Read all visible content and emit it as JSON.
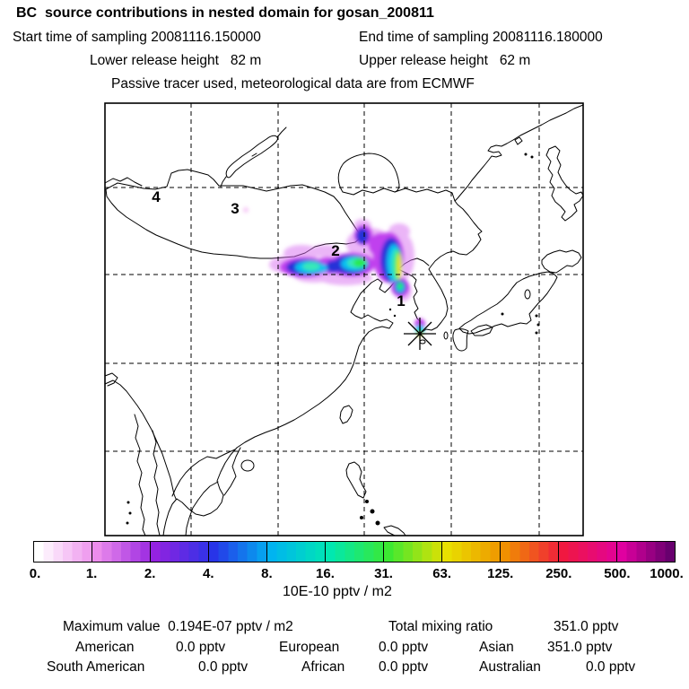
{
  "header": {
    "title": "BC  source contributions in nested domain for gosan_200811",
    "start_time": "Start time of sampling 20081116.150000",
    "end_time": "End time of sampling 20081116.180000",
    "lower_release": "Lower release height   82 m",
    "upper_release": "Upper release height   62 m",
    "tracer_info": "Passive tracer used, meteorological data are from ECMWF"
  },
  "map": {
    "region_labels": [
      {
        "label": "1"
      },
      {
        "label": "2"
      },
      {
        "label": "3"
      },
      {
        "label": "4"
      }
    ],
    "receptor_marker": "asterisk-star"
  },
  "colorbar": {
    "tick_labels": [
      "0.",
      "1.",
      "2.",
      "4.",
      "8.",
      "16.",
      "31.",
      "63.",
      "125.",
      "250.",
      "500.",
      "1000."
    ],
    "anchor_colors": [
      "#ffffff",
      "#ec8cec",
      "#9422e0",
      "#2834e8",
      "#00b4f0",
      "#00e8b0",
      "#3ce832",
      "#e8e000",
      "#f09000",
      "#f01840",
      "#e000a0",
      "#500064"
    ],
    "steps_per_segment": 6,
    "units": "10E-10 pptv / m2"
  },
  "stats": {
    "maximum": "Maximum value  0.194E-07 pptv / m2",
    "total_label": "Total mixing ratio",
    "total_value": "351.0 pptv",
    "regions": [
      {
        "name": "American",
        "value": "0.0 pptv"
      },
      {
        "name": "European",
        "value": "0.0 pptv"
      },
      {
        "name": "Asian",
        "value": "351.0 pptv"
      },
      {
        "name": "South American",
        "value": "0.0 pptv"
      },
      {
        "name": "African",
        "value": "0.0 pptv"
      },
      {
        "name": "Australian",
        "value": "0.0 pptv"
      }
    ]
  },
  "chart_data": {
    "type": "heatmap",
    "title": "BC  source contributions in nested domain for gosan_200811",
    "subtitle": "Passive tracer used, meteorological data are from ECMWF",
    "sampling": {
      "start": "20081116.150000",
      "end": "20081116.180000"
    },
    "release_height_m": {
      "lower": 82,
      "upper": 62
    },
    "colorbar_boundaries": [
      0,
      1,
      2,
      4,
      8,
      16,
      31,
      63,
      125,
      250,
      500,
      1000
    ],
    "colorbar_units": "10E-10 pptv / m2",
    "maximum_value": "0.194E-07 pptv / m2",
    "total_mixing_ratio_pptv": 351.0,
    "contributions_pptv": {
      "American": 0.0,
      "European": 0.0,
      "Asian": 351.0,
      "South American": 0.0,
      "African": 0.0,
      "Australian": 0.0
    },
    "numbered_source_points": [
      "1",
      "2",
      "3",
      "4"
    ],
    "plume_description": "Source contribution plume over NE China / Bohai region with maximum (yellow core) near point 1, extending west past point 2; receptor star at Gosan, Korea",
    "legend_position": "bottom",
    "grid": true
  }
}
